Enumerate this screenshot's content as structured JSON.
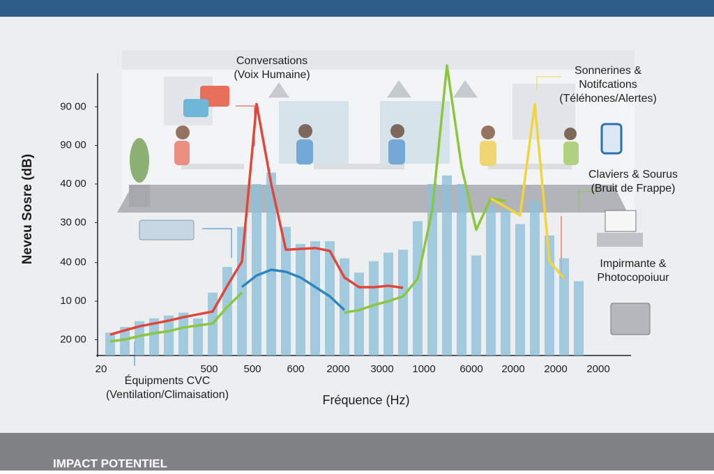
{
  "chart_data": {
    "type": "bar",
    "ylabel": "Neveu Sosre (dB)",
    "xlabel": "Fréquence (Hz)",
    "ylim": [
      0,
      105
    ],
    "yticks": [
      {
        "value": 87,
        "label": "90 00"
      },
      {
        "value": 73.5,
        "label": "90 00"
      },
      {
        "value": 60,
        "label": "40 00"
      },
      {
        "value": 46.5,
        "label": "30 00"
      },
      {
        "value": 32.5,
        "label": "40 00"
      },
      {
        "value": 19,
        "label": "10 00"
      },
      {
        "value": 5.5,
        "label": "20 00"
      }
    ],
    "x_labels": [
      "20",
      "500",
      "500",
      "600",
      "2000",
      "3000",
      "1000",
      "6000",
      "2000",
      "2000",
      "2000"
    ],
    "color": "#8fc0da",
    "values": [
      8,
      10,
      12,
      13,
      14,
      15,
      13,
      22,
      31,
      45,
      60,
      64,
      45,
      39,
      40,
      40,
      34,
      29,
      33,
      36,
      37,
      47,
      60,
      63,
      60,
      35,
      52,
      51,
      46,
      54,
      42,
      34,
      26
    ],
    "series": [
      {
        "color": "#e0463a",
        "values": [
          7.3,
          8.8,
          10.2,
          11.2,
          12.2,
          13.4,
          14.4,
          15.4,
          24.4,
          32.9,
          88,
          60,
          37,
          37.3,
          37.6,
          36.6,
          27.3,
          23.9,
          23.9,
          24.4,
          23.7,
          null,
          null,
          null,
          null,
          null,
          null,
          null,
          null,
          null,
          null,
          null,
          null
        ]
      },
      {
        "color": "#8cc63f",
        "values": [
          4.9,
          5.6,
          6.8,
          7.8,
          8.5,
          9.8,
          10.5,
          11.2,
          17,
          22,
          null,
          null,
          null,
          null,
          null,
          null,
          15,
          15.9,
          17.6,
          19,
          20.7,
          26.8,
          51,
          101.5,
          66,
          44,
          55,
          54,
          null,
          null,
          null,
          null,
          null
        ]
      },
      {
        "color": "#2e86c1",
        "values": [
          null,
          null,
          null,
          null,
          null,
          null,
          null,
          null,
          null,
          24,
          28,
          30,
          29.3,
          27.3,
          24,
          20.7,
          15.9,
          null,
          null,
          null,
          null,
          null,
          null,
          null,
          null,
          null,
          null,
          null,
          null,
          null,
          null,
          null,
          null
        ]
      },
      {
        "color": "#f2d43c",
        "values": [
          null,
          null,
          null,
          null,
          null,
          null,
          null,
          null,
          null,
          null,
          null,
          null,
          null,
          null,
          null,
          null,
          null,
          null,
          null,
          null,
          null,
          null,
          null,
          null,
          null,
          null,
          55,
          52,
          49,
          88,
          33,
          27,
          null
        ]
      }
    ],
    "annotations": [
      [
        "Conversations",
        "(Voix Humaine)"
      ],
      [
        "Sonnerines &",
        "Notifcations",
        "(Téléhones/Alertes)"
      ],
      [
        "Claviers & Sourus",
        "(Bruit de Frappe)"
      ],
      [
        "Impirmante &",
        "Photocopoiuur"
      ],
      [
        "Équipments CVC",
        "(Ventilation/Climaisation)"
      ]
    ],
    "footer": "IMPACT POTENTIEL"
  }
}
